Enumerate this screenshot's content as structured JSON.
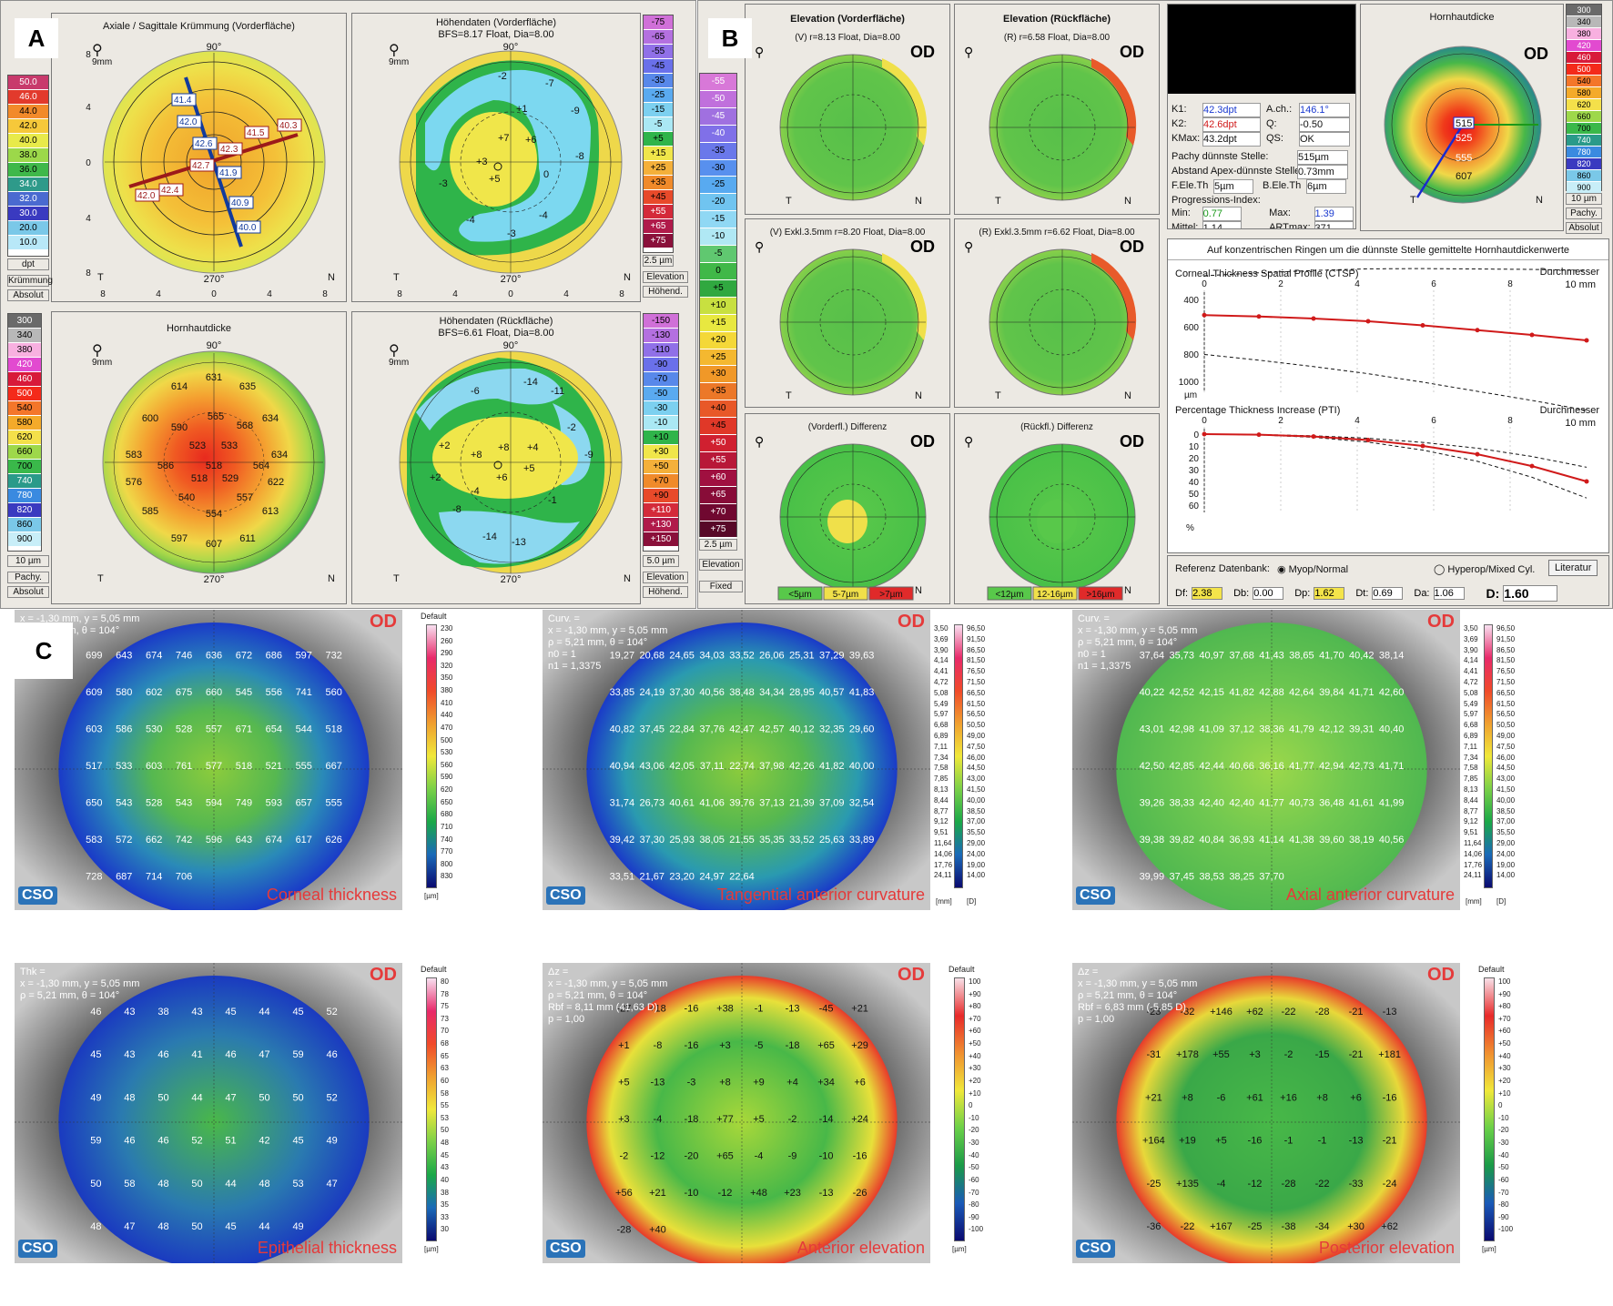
{
  "panels": {
    "a": "A",
    "b": "B",
    "c": "C"
  },
  "a": {
    "curv": {
      "title": "Axiale / Sagittale Krümmung (Vorderfläche)",
      "scale": [
        "50.0",
        "46.0",
        "44.0",
        "42.0",
        "40.0",
        "38.0",
        "36.0",
        "34.0",
        "32.0",
        "30.0",
        "20.0",
        "10.0"
      ],
      "unit": "dpt",
      "l1": "Krümmung",
      "l2": "Absolut",
      "vals": [
        "41.4",
        "42.0",
        "42.6",
        "42.7",
        "41.5",
        "42.3",
        "41.9",
        "40.3",
        "42.0",
        "42.4",
        "40.9",
        "40.0"
      ]
    },
    "elev_front": {
      "title": "Höhendaten (Vorderfläche)",
      "sub": "BFS=8.17 Float, Dia=8.00",
      "scale": [
        "-75",
        "-65",
        "-55",
        "-45",
        "-35",
        "-25",
        "-15",
        "-5",
        "+5",
        "+15",
        "+25",
        "+35",
        "+45",
        "+55",
        "+65",
        "+75"
      ],
      "step": "2.5 µm",
      "l1": "Elevation",
      "l2": "Höhend."
    },
    "pachy": {
      "title": "Hornhautdicke",
      "scale": [
        "300",
        "340",
        "380",
        "420",
        "460",
        "500",
        "540",
        "580",
        "620",
        "660",
        "700",
        "740",
        "780",
        "820",
        "860",
        "900"
      ],
      "step": "10 µm",
      "l1": "Pachy.",
      "l2": "Absolut",
      "vals": [
        "614",
        "631",
        "635",
        "600",
        "565",
        "568",
        "634",
        "583",
        "590",
        "523",
        "533",
        "586",
        "518",
        "564",
        "634",
        "576",
        "518",
        "529",
        "622",
        "585",
        "540",
        "557",
        "613",
        "597",
        "554",
        "607",
        "611"
      ]
    },
    "elev_back": {
      "title": "Höhendaten (Rückfläche)",
      "sub": "BFS=6.61 Float, Dia=8.00",
      "scale": [
        "-150",
        "-130",
        "-110",
        "-90",
        "-70",
        "-50",
        "-30",
        "-10",
        "+10",
        "+30",
        "+50",
        "+70",
        "+90",
        "+110",
        "+130",
        "+150"
      ],
      "step": "5.0 µm",
      "l1": "Elevation",
      "l2": "Höhend."
    },
    "axis": {
      "t": "T",
      "n": "N",
      "deg90": "90°",
      "deg270": "270°",
      "ticks": [
        "8",
        "4",
        "0",
        "4",
        "8"
      ],
      "mm": "9mm"
    }
  },
  "b": {
    "scale": [
      "-55",
      "-50",
      "-45",
      "-40",
      "-35",
      "-30",
      "-25",
      "-20",
      "-15",
      "-10",
      "-5",
      "0",
      "+5",
      "+10",
      "+15",
      "+20",
      "+25",
      "+30",
      "+35",
      "+40",
      "+45",
      "+50",
      "+55",
      "+60",
      "+65",
      "+70",
      "+75"
    ],
    "step": "2.5 µm",
    "l1": "Elevation",
    "l2": "Fixed",
    "maps": [
      {
        "title": "Elevation (Vorderfläche)",
        "sub": "(V) r=8.13 Float, Dia=8.00",
        "od": "OD"
      },
      {
        "title": "Elevation (Rückfläche)",
        "sub": "(R) r=6.58 Float, Dia=8.00",
        "od": "OD"
      },
      {
        "title": "",
        "sub": "(V) Exkl.3.5mm  r=8.20 Float, Dia=8.00",
        "od": "OD"
      },
      {
        "title": "",
        "sub": "(R) Exkl.3.5mm  r=6.62 Float, Dia=8.00",
        "od": "OD"
      },
      {
        "title": "",
        "sub": "(Vorderfl.) Differenz",
        "od": "OD"
      },
      {
        "title": "",
        "sub": "(Rückfl.) Differenz",
        "od": "OD"
      }
    ],
    "legend1": [
      "<5µm",
      "5-7µm",
      ">7µm"
    ],
    "legend2": [
      "<12µm",
      "12-16µm",
      ">16µm"
    ],
    "info": {
      "k1": "K1:",
      "k1v": "42.3dpt",
      "k2": "K2:",
      "k2v": "42.6dpt",
      "kmax": "KMax:",
      "kmaxv": "43.2dpt",
      "ach": "A.ch.:",
      "achv": "146.1°",
      "q": "Q:",
      "qv": "-0.50",
      "qs": "QS:",
      "qsv": "OK",
      "pachy": "Pachy dünnste Stelle:",
      "pachyv": "515µm",
      "apex": "Abstand Apex-dünnste Stelle:",
      "apexv": "0.73mm",
      "fele": "F.Ele.Th",
      "felev": "5µm",
      "bele": "B.Ele.Th",
      "belev": "6µm",
      "prog": "Progressions-Index:",
      "min": "Min:",
      "minv": "0.77",
      "max": "Max:",
      "maxv": "1.39",
      "mit": "Mittel:",
      "mitv": "1.14",
      "art": "ARTmax:",
      "artv": "371"
    },
    "hh": {
      "title": "Hornhautdicke",
      "od": "OD",
      "scale": [
        "300",
        "340",
        "380",
        "420",
        "460",
        "500",
        "540",
        "580",
        "620",
        "660",
        "700",
        "740",
        "780",
        "820",
        "860",
        "900"
      ],
      "step": "10 µm",
      "l1": "Pachy.",
      "l2": "Absolut",
      "vals": [
        "515",
        "525",
        "555",
        "607"
      ]
    },
    "graph": {
      "title": "Auf konzentrischen Ringen um die dünnste Stelle gemittelte Hornhautdickenwerte",
      "ctsp": "Corneal Thickness Spatial Profile (CTSP)",
      "dm": "Durchmesser",
      "mm": "10 mm",
      "xt": [
        "0",
        "2",
        "4",
        "6",
        "8"
      ],
      "y1": [
        "400",
        "600",
        "800",
        "1000"
      ],
      "y1u": "µm",
      "pti": "Percentage Thickness Increase (PTI)",
      "y2": [
        "0",
        "10",
        "20",
        "30",
        "40",
        "50",
        "60"
      ],
      "y2u": "%",
      "ref": "Referenz Datenbank:",
      "myop": "Myop/Normal",
      "hyper": "Hyperop/Mixed Cyl.",
      "lit": "Literatur",
      "df": "Df:",
      "dfv": "2.38",
      "db": "Db:",
      "dbv": "0.00",
      "dp": "Dp:",
      "dpv": "1.62",
      "dt": "Dt:",
      "dtv": "0.69",
      "da": "Da:",
      "dav": "1.06",
      "d": "D:",
      "dv": "1.60",
      "ctsp_pts": [
        515,
        525,
        540,
        560,
        590,
        625,
        660,
        700
      ],
      "pti_pts": [
        0,
        0.5,
        2,
        5,
        10,
        17,
        27,
        40
      ]
    }
  },
  "c": {
    "maps": [
      {
        "title": "Corneal thickness",
        "od": "OD",
        "info": [
          "x = -1,30 mm, y = 5,05 mm",
          "ρ = 5,21 mm, θ = 104°"
        ]
      },
      {
        "title": "Tangential anterior curvature",
        "od": "OD",
        "info": [
          "Curv. =",
          "x = -1,30 mm, y = 5,05 mm",
          "ρ = 5,21 mm, θ = 104°",
          "n0 = 1",
          "n1 = 1,3375"
        ]
      },
      {
        "title": "Axial anterior curvature",
        "od": "OD",
        "info": [
          "Curv. =",
          "x = -1,30 mm, y = 5,05 mm",
          "ρ = 5,21 mm, θ = 104°",
          "n0 = 1",
          "n1 = 1,3375"
        ]
      },
      {
        "title": "Epithelial thickness",
        "od": "OD",
        "info": [
          "Thk =",
          "x = -1,30 mm, y = 5,05 mm",
          "ρ = 5,21 mm, θ = 104°"
        ]
      },
      {
        "title": "Anterior elevation",
        "od": "OD",
        "info": [
          "Δz =",
          "x = -1,30 mm, y = 5,05 mm",
          "ρ = 5,21 mm, θ = 104°",
          "Rbf = 8,11 mm (41,63 D)",
          "p = 1,00"
        ]
      },
      {
        "title": "Posterior elevation",
        "od": "OD",
        "info": [
          "Δz =",
          "x = -1,30 mm, y = 5,05 mm",
          "ρ = 5,21 mm, θ = 104°",
          "Rbf = 6,83 mm (-5,85 D)",
          "p = 1,00"
        ]
      }
    ],
    "cso": "CSO",
    "default": "Default",
    "bar_thick": [
      "230",
      "260",
      "290",
      "320",
      "350",
      "380",
      "410",
      "440",
      "470",
      "500",
      "530",
      "560",
      "590",
      "620",
      "650",
      "680",
      "710",
      "740",
      "770",
      "800",
      "830"
    ],
    "bar_um": "[µm]",
    "bar_curv_mm": [
      "3,50",
      "3,69",
      "3,90",
      "4,14",
      "4,41",
      "4,72",
      "5,08",
      "5,49",
      "5,97",
      "6,68",
      "6,89",
      "7,11",
      "7,34",
      "7,58",
      "7,85",
      "8,13",
      "8,44",
      "8,77",
      "9,12",
      "9,51",
      "11,64",
      "14,06",
      "17,76",
      "24,11"
    ],
    "bar_curv_d": [
      "96,50",
      "91,50",
      "86,50",
      "81,50",
      "76,50",
      "71,50",
      "66,50",
      "61,50",
      "56,50",
      "50,50",
      "49,00",
      "47,50",
      "46,00",
      "44,50",
      "43,00",
      "41,50",
      "40,00",
      "38,50",
      "37,00",
      "35,50",
      "29,00",
      "24,00",
      "19,00",
      "14,00"
    ],
    "bar_mm": "[mm]",
    "bar_d": "[D]",
    "bar_epi": [
      "80",
      "78",
      "75",
      "73",
      "70",
      "68",
      "65",
      "63",
      "60",
      "58",
      "55",
      "53",
      "50",
      "48",
      "45",
      "43",
      "40",
      "38",
      "35",
      "33",
      "30"
    ],
    "bar_elev": [
      "100",
      "+90",
      "+80",
      "+70",
      "+60",
      "+50",
      "+40",
      "+30",
      "+20",
      "+10",
      "0",
      "-10",
      "-20",
      "-30",
      "-40",
      "-50",
      "-60",
      "-70",
      "-80",
      "-90",
      "-100"
    ],
    "thick_vals": [
      "699",
      "643",
      "674",
      "746",
      "636",
      "672",
      "686",
      "597",
      "732",
      "609",
      "580",
      "602",
      "675",
      "660",
      "545",
      "556",
      "741",
      "560",
      "603",
      "586",
      "530",
      "528",
      "557",
      "671",
      "654",
      "544",
      "518",
      "517",
      "533",
      "603",
      "761",
      "577",
      "518",
      "521",
      "555",
      "667",
      "650",
      "543",
      "528",
      "543",
      "594",
      "749",
      "593",
      "657",
      "555",
      "583",
      "572",
      "662",
      "742",
      "596",
      "643",
      "674",
      "617",
      "626",
      "728",
      "687",
      "714",
      "706"
    ],
    "tang_vals": [
      "19,27",
      "20,68",
      "24,65",
      "34,03",
      "33,52",
      "26,06",
      "25,31",
      "37,29",
      "39,63",
      "33,85",
      "24,19",
      "37,30",
      "40,56",
      "38,48",
      "34,34",
      "28,95",
      "40,57",
      "41,83",
      "40,82",
      "37,45",
      "22,84",
      "37,76",
      "42,47",
      "42,57",
      "40,12",
      "32,35",
      "29,60",
      "40,94",
      "43,06",
      "42,05",
      "37,11",
      "22,74",
      "37,98",
      "42,26",
      "41,82",
      "40,00",
      "31,74",
      "26,73",
      "40,61",
      "41,06",
      "39,76",
      "37,13",
      "21,39",
      "37,09",
      "32,54",
      "39,42",
      "37,30",
      "25,93",
      "38,05",
      "21,55",
      "35,35",
      "33,52",
      "25,63",
      "33,89",
      "33,51",
      "21,67",
      "23,20",
      "24,97",
      "22,64"
    ],
    "axial_vals": [
      "37,64",
      "35,73",
      "40,97",
      "37,68",
      "41,43",
      "38,65",
      "41,70",
      "40,42",
      "38,14",
      "40,22",
      "42,52",
      "42,15",
      "41,82",
      "42,88",
      "42,64",
      "39,84",
      "41,71",
      "42,60",
      "43,01",
      "42,98",
      "41,09",
      "37,12",
      "38,36",
      "41,79",
      "42,12",
      "39,31",
      "40,40",
      "42,50",
      "42,85",
      "42,44",
      "40,66",
      "36,16",
      "41,77",
      "42,94",
      "42,73",
      "41,71",
      "39,26",
      "38,33",
      "42,40",
      "42,40",
      "41,77",
      "40,73",
      "36,48",
      "41,61",
      "41,99",
      "39,38",
      "39,82",
      "40,84",
      "36,93",
      "41,14",
      "41,38",
      "39,60",
      "38,19",
      "40,56",
      "39,99",
      "37,45",
      "38,53",
      "38,25",
      "37,70"
    ],
    "epi_vals": [
      "46",
      "43",
      "38",
      "43",
      "45",
      "44",
      "45",
      "52",
      "45",
      "43",
      "46",
      "41",
      "46",
      "47",
      "59",
      "46",
      "49",
      "48",
      "50",
      "44",
      "47",
      "50",
      "50",
      "52",
      "59",
      "46",
      "46",
      "52",
      "51",
      "42",
      "45",
      "49",
      "50",
      "58",
      "48",
      "50",
      "44",
      "48",
      "53",
      "47",
      "48",
      "47",
      "48",
      "50",
      "45",
      "44",
      "49"
    ],
    "ant_vals": [
      "-27",
      "+18",
      "-16",
      "+38",
      "-1",
      "-13",
      "-45",
      "+21",
      "+1",
      "-8",
      "-16",
      "+3",
      "-5",
      "-18",
      "+65",
      "+29",
      "+5",
      "-13",
      "-3",
      "+8",
      "+9",
      "+4",
      "+34",
      "+6",
      "+3",
      "-4",
      "-18",
      "+77",
      "+5",
      "-2",
      "-14",
      "+24",
      "-2",
      "-12",
      "-20",
      "+65",
      "-4",
      "-9",
      "-10",
      "-16",
      "+56",
      "+21",
      "-10",
      "-12",
      "+48",
      "+23",
      "-13",
      "-26",
      "-28",
      "+40"
    ],
    "post_vals": [
      "-23",
      "-32",
      "+146",
      "+62",
      "-22",
      "-28",
      "-21",
      "-13",
      "-31",
      "+178",
      "+55",
      "+3",
      "-2",
      "-15",
      "-21",
      "+181",
      "+21",
      "+8",
      "-6",
      "+61",
      "+16",
      "+8",
      "+6",
      "-16",
      "+164",
      "+19",
      "+5",
      "-16",
      "-1",
      "-1",
      "-13",
      "-21",
      "-25",
      "+135",
      "-4",
      "-12",
      "-28",
      "-22",
      "-33",
      "-24",
      "-36",
      "-22",
      "+167",
      "-25",
      "-38",
      "-34",
      "+30",
      "+62"
    ]
  }
}
